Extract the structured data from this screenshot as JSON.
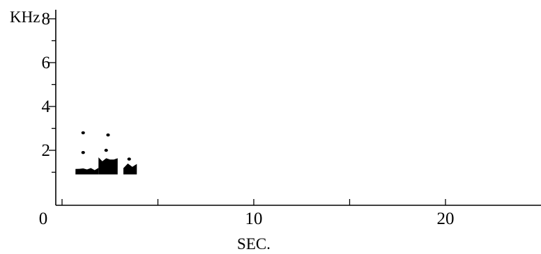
{
  "chart_data": {
    "type": "heatmap",
    "title": "",
    "xlabel": "SEC.",
    "ylabel": "KHz",
    "xlim": [
      0,
      25
    ],
    "ylim": [
      0,
      9
    ],
    "x_ticks": [
      0,
      10,
      20
    ],
    "x_minor_ticks": [
      5,
      15
    ],
    "y_ticks": [
      2,
      4,
      6,
      8
    ],
    "y_minor_ticks": [
      1,
      3,
      5,
      7
    ],
    "grid": false,
    "colors": {
      "mark": "#000000",
      "background": "#ffffff"
    },
    "segments": [
      {
        "t_start": 0.7,
        "t_end": 1.9,
        "f_low": 0.9,
        "f_high": 1.2
      },
      {
        "t_start": 1.9,
        "t_end": 2.9,
        "f_low": 0.9,
        "f_high": 1.7
      },
      {
        "t_start": 3.2,
        "t_end": 3.9,
        "f_low": 0.9,
        "f_high": 1.4
      }
    ],
    "spots": [
      {
        "t": 1.1,
        "f": 2.8
      },
      {
        "t": 1.1,
        "f": 1.9
      },
      {
        "t": 2.4,
        "f": 2.7
      },
      {
        "t": 2.3,
        "f": 2.0
      },
      {
        "t": 3.5,
        "f": 1.6
      }
    ]
  }
}
